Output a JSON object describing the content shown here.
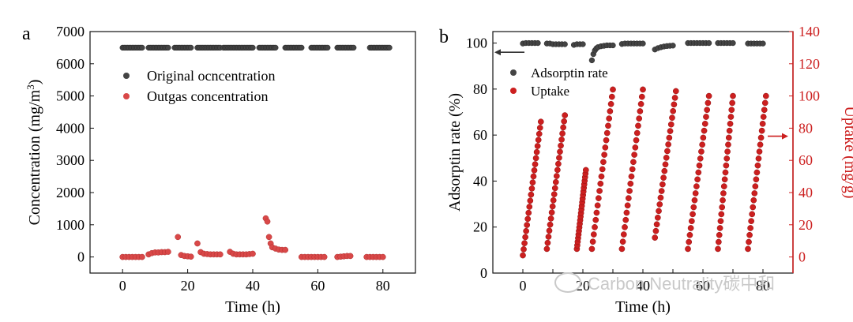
{
  "chart_data": [
    {
      "panel_label": "a",
      "type": "scatter",
      "xlabel": "Time (h)",
      "ylabel": "Concentration (mg/m",
      "ylabel_sup": "3",
      "ylabel_close": ")",
      "xlim": [
        -10,
        90
      ],
      "ylim": [
        -500,
        7000
      ],
      "xticks": [
        0,
        20,
        40,
        60,
        80
      ],
      "yticks": [
        0,
        1000,
        2000,
        3000,
        4000,
        5000,
        6000,
        7000
      ],
      "legend_position": "upper-left",
      "series": [
        {
          "name": "Original ocncentration",
          "color": "#444444",
          "segments": [
            [
              0,
              6
            ],
            [
              8,
              14
            ],
            [
              16,
              21
            ],
            [
              23,
              30
            ],
            [
              31,
              40
            ],
            [
              42,
              47
            ],
            [
              50,
              55
            ],
            [
              58,
              63
            ],
            [
              66,
              71
            ],
            [
              76,
              82
            ]
          ],
          "y_const": 6500
        },
        {
          "name": "Outgas concentration",
          "color": "#d94848",
          "points": [
            [
              0,
              0
            ],
            [
              1,
              0
            ],
            [
              2,
              0
            ],
            [
              3,
              0
            ],
            [
              4,
              0
            ],
            [
              5,
              0
            ],
            [
              6,
              0
            ],
            [
              8,
              80
            ],
            [
              9,
              120
            ],
            [
              10,
              140
            ],
            [
              11,
              140
            ],
            [
              12,
              150
            ],
            [
              13,
              150
            ],
            [
              14,
              160
            ],
            [
              17,
              620
            ],
            [
              18,
              60
            ],
            [
              19,
              30
            ],
            [
              20,
              20
            ],
            [
              21,
              10
            ],
            [
              23,
              420
            ],
            [
              24,
              150
            ],
            [
              25,
              100
            ],
            [
              26,
              90
            ],
            [
              27,
              80
            ],
            [
              28,
              80
            ],
            [
              29,
              80
            ],
            [
              30,
              80
            ],
            [
              33,
              160
            ],
            [
              34,
              100
            ],
            [
              35,
              80
            ],
            [
              36,
              80
            ],
            [
              37,
              80
            ],
            [
              38,
              80
            ],
            [
              39,
              90
            ],
            [
              40,
              100
            ],
            [
              44,
              1200
            ],
            [
              44.5,
              1100
            ],
            [
              45,
              620
            ],
            [
              45.5,
              420
            ],
            [
              46,
              300
            ],
            [
              47,
              260
            ],
            [
              48,
              230
            ],
            [
              49,
              220
            ],
            [
              50,
              220
            ],
            [
              55,
              0
            ],
            [
              56,
              0
            ],
            [
              57,
              0
            ],
            [
              58,
              0
            ],
            [
              59,
              0
            ],
            [
              60,
              0
            ],
            [
              61,
              0
            ],
            [
              62,
              0
            ],
            [
              66,
              0
            ],
            [
              67,
              10
            ],
            [
              68,
              20
            ],
            [
              69,
              30
            ],
            [
              70,
              30
            ],
            [
              75,
              0
            ],
            [
              76,
              0
            ],
            [
              77,
              0
            ],
            [
              78,
              0
            ],
            [
              79,
              0
            ],
            [
              80,
              0
            ]
          ]
        }
      ]
    },
    {
      "panel_label": "b",
      "type": "scatter",
      "xlabel": "Time (h)",
      "ylabel": "Adsorptin rate (%)",
      "y2label": "Uptake (mg/g)",
      "xlim": [
        -10,
        90
      ],
      "ylim": [
        0,
        105
      ],
      "y2lim": [
        -10,
        140
      ],
      "xticks_labels": [
        "0",
        "",
        "20",
        "",
        "40",
        "",
        "60",
        "",
        "80"
      ],
      "xticks": [
        0,
        10,
        20,
        30,
        40,
        50,
        60,
        70,
        80
      ],
      "yticks": [
        0,
        20,
        40,
        60,
        80,
        100
      ],
      "y2ticks": [
        0,
        20,
        40,
        60,
        80,
        100,
        120,
        140
      ],
      "legend_position": "upper-left",
      "series": [
        {
          "name": "Adsorptin rate",
          "axis": "left",
          "color": "#444444",
          "points": [
            [
              0,
              99.8
            ],
            [
              1,
              100
            ],
            [
              2,
              100
            ],
            [
              3,
              100
            ],
            [
              4,
              100
            ],
            [
              5,
              100
            ],
            [
              8,
              99.8
            ],
            [
              9,
              99.8
            ],
            [
              10,
              99.5
            ],
            [
              11,
              99.5
            ],
            [
              12,
              99.5
            ],
            [
              13,
              99.5
            ],
            [
              14,
              99.5
            ],
            [
              17,
              99.2
            ],
            [
              18,
              99.5
            ],
            [
              19,
              99.5
            ],
            [
              20,
              99.5
            ],
            [
              23,
              92.5
            ],
            [
              23.5,
              95.2
            ],
            [
              24,
              96.8
            ],
            [
              24.5,
              97.7
            ],
            [
              25,
              98.2
            ],
            [
              26,
              98.6
            ],
            [
              27,
              98.8
            ],
            [
              28,
              99
            ],
            [
              29,
              99
            ],
            [
              30,
              99
            ],
            [
              33,
              99.6
            ],
            [
              34,
              99.8
            ],
            [
              35,
              99.8
            ],
            [
              36,
              99.8
            ],
            [
              37,
              99.8
            ],
            [
              38,
              99.8
            ],
            [
              39,
              99.8
            ],
            [
              40,
              99.8
            ],
            [
              44,
              97.2
            ],
            [
              45,
              97.8
            ],
            [
              46,
              98.2
            ],
            [
              47,
              98.5
            ],
            [
              48,
              98.7
            ],
            [
              49,
              98.8
            ],
            [
              50,
              98.9
            ],
            [
              55,
              100
            ],
            [
              56,
              100
            ],
            [
              57,
              100
            ],
            [
              58,
              100
            ],
            [
              59,
              100
            ],
            [
              60,
              100
            ],
            [
              61,
              100
            ],
            [
              62,
              100
            ],
            [
              65,
              100
            ],
            [
              66,
              100
            ],
            [
              67,
              100
            ],
            [
              68,
              100
            ],
            [
              69,
              100
            ],
            [
              70,
              100
            ],
            [
              75,
              99.8
            ],
            [
              76,
              99.8
            ],
            [
              77,
              99.8
            ],
            [
              78,
              99.8
            ],
            [
              79,
              99.8
            ],
            [
              80,
              99.8
            ]
          ]
        },
        {
          "name": "Uptake",
          "axis": "right",
          "color": "#cc1f1f",
          "runs": [
            [
              0,
              1,
              6,
              84
            ],
            [
              8,
              5,
              14,
              88
            ],
            [
              18,
              5,
              21,
              54
            ],
            [
              23,
              5,
              30,
              104
            ],
            [
              33,
              5,
              40,
              104
            ],
            [
              44,
              12,
              51,
              103
            ],
            [
              55,
              5,
              62,
              100
            ],
            [
              65,
              5,
              70,
              100
            ],
            [
              75,
              5,
              81,
              100
            ]
          ]
        }
      ]
    }
  ],
  "watermark": "Carbon Neutrality碳中和"
}
